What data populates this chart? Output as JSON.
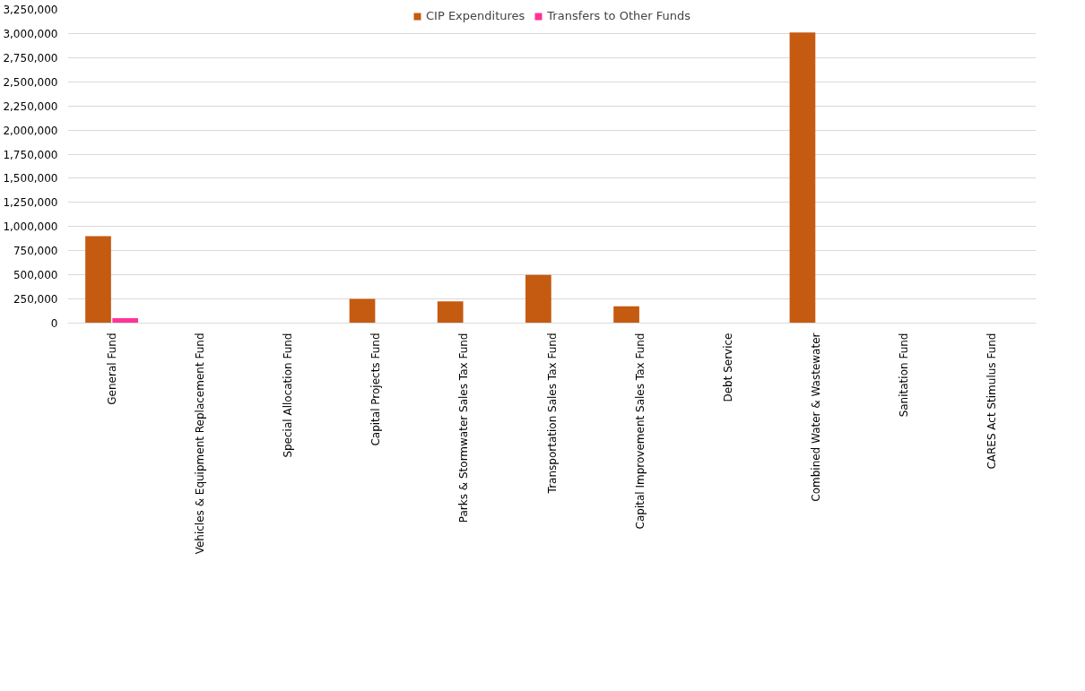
{
  "chart_data": {
    "type": "bar",
    "categories": [
      "General Fund",
      "Vehicles & Equipment Replacement Fund",
      "Special Allocation Fund",
      "Capital Projects Fund",
      "Parks & Stormwater Sales Tax Fund",
      "Transportation Sales Tax Fund",
      "Capital Improvement Sales Tax Fund",
      "Debt Service",
      "Combined Water & Wastewater",
      "Sanitation Fund",
      "CARES Act Stimulus Fund"
    ],
    "series": [
      {
        "name": "CIP Expenditures",
        "color": "#c55a11",
        "values": [
          900000,
          0,
          0,
          250000,
          225000,
          500000,
          175000,
          0,
          3010000,
          0,
          0
        ]
      },
      {
        "name": "Transfers to Other Funds",
        "color": "#ff3399",
        "values": [
          50000,
          0,
          0,
          0,
          0,
          0,
          0,
          0,
          0,
          0,
          0
        ]
      }
    ],
    "ylim": [
      0,
      3250000
    ],
    "yticks": [
      {
        "value": 0,
        "label": "0"
      },
      {
        "value": 250000,
        "label": "250,000"
      },
      {
        "value": 500000,
        "label": "500,000"
      },
      {
        "value": 750000,
        "label": "750,000"
      },
      {
        "value": 1000000,
        "label": "1,000,000"
      },
      {
        "value": 1250000,
        "label": "1,250,000"
      },
      {
        "value": 1500000,
        "label": "1,500,000"
      },
      {
        "value": 1750000,
        "label": "1,750,000"
      },
      {
        "value": 2000000,
        "label": "2,000,000"
      },
      {
        "value": 2250000,
        "label": "2,250,000"
      },
      {
        "value": 2500000,
        "label": "2,500,000"
      },
      {
        "value": 2750000,
        "label": "2,750,000"
      },
      {
        "value": 3000000,
        "label": "3,000,000"
      },
      {
        "value": 3250000,
        "label": "3,250,000"
      }
    ],
    "grid": "y",
    "legend": "top"
  }
}
